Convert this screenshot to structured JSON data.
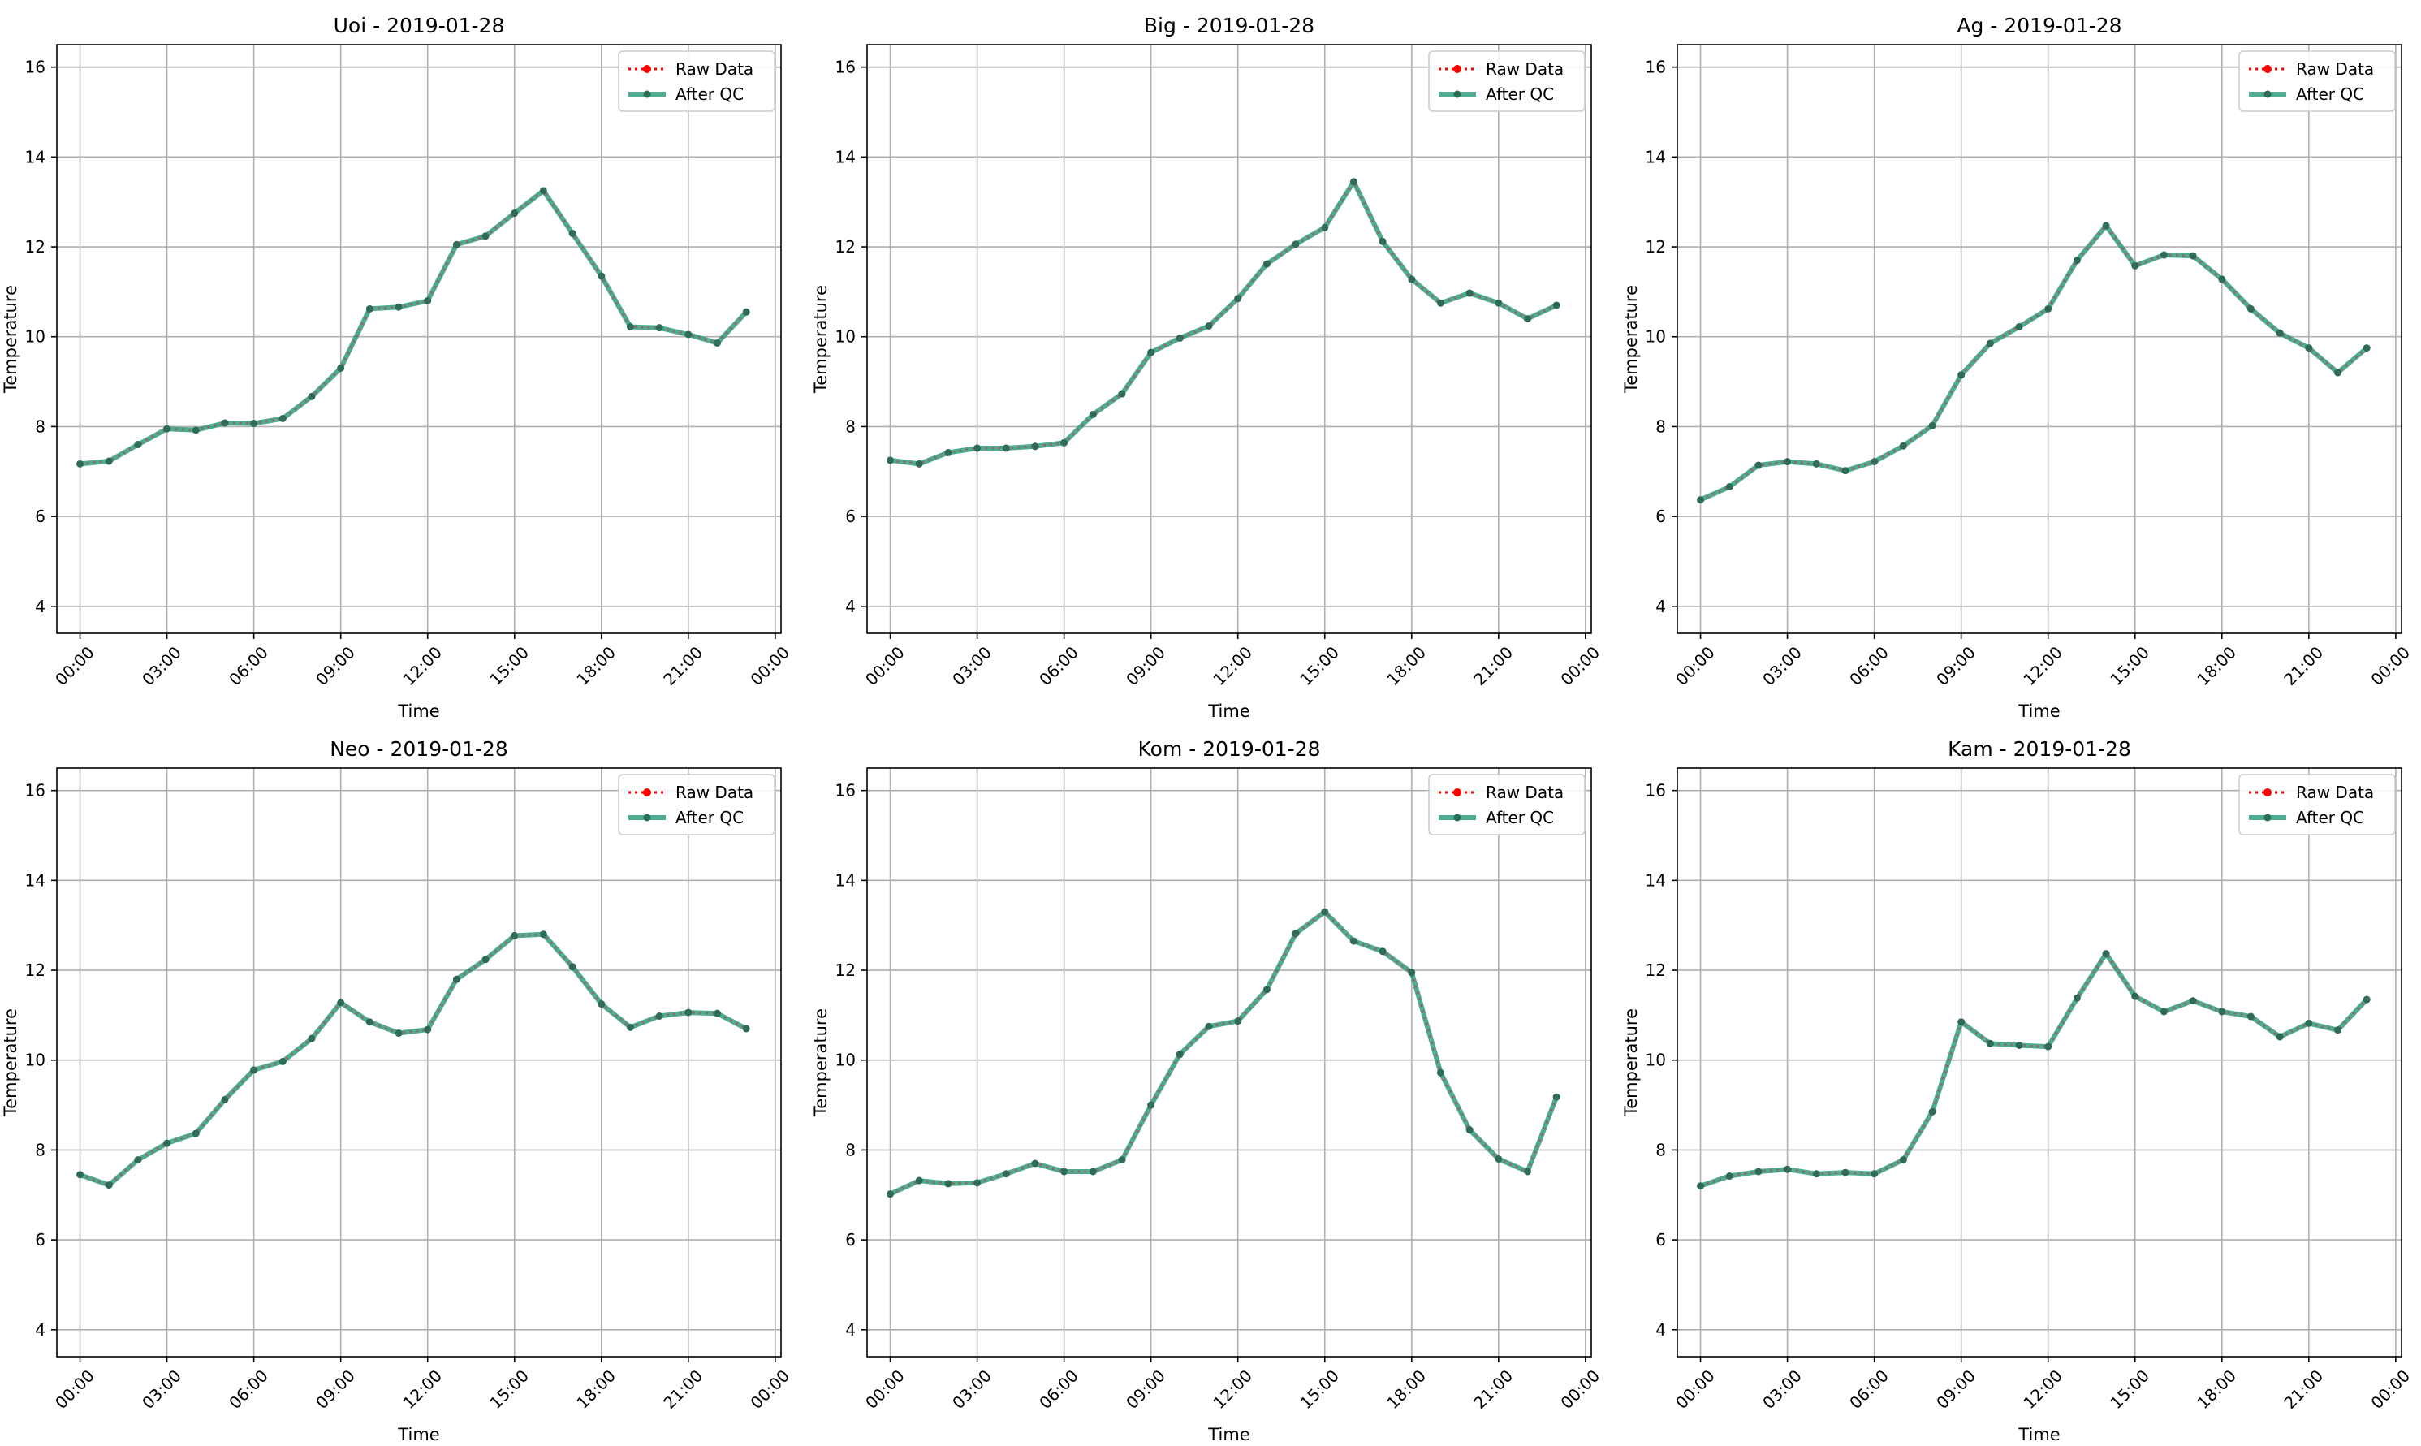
{
  "figure": {
    "colors": {
      "raw": "#ff0000",
      "qc": "#2e9e7e",
      "qc_marker": "#2f6b55",
      "grid": "#b0b0b0",
      "axis": "#000000"
    }
  },
  "chart_data": [
    {
      "type": "line",
      "title": "Uoi - 2019-01-28",
      "xlabel": "Time",
      "ylabel": "Temperature",
      "x": [
        "00:00",
        "01:00",
        "02:00",
        "03:00",
        "04:00",
        "05:00",
        "06:00",
        "07:00",
        "08:00",
        "09:00",
        "10:00",
        "11:00",
        "12:00",
        "13:00",
        "14:00",
        "15:00",
        "16:00",
        "17:00",
        "18:00",
        "19:00",
        "20:00",
        "21:00",
        "22:00",
        "23:00"
      ],
      "xticks": [
        "00:00",
        "03:00",
        "06:00",
        "09:00",
        "12:00",
        "15:00",
        "18:00",
        "21:00",
        "00:00"
      ],
      "xlim": [
        "2019-01-28 -00:48",
        "2019-01-29 00:12"
      ],
      "ylim": [
        3.4,
        16.5
      ],
      "yticks": [
        4,
        6,
        8,
        10,
        12,
        14,
        16
      ],
      "grid": true,
      "legend": "top-right",
      "series": [
        {
          "name": "Raw Data",
          "values": [
            7.17,
            7.23,
            7.6,
            7.95,
            7.92,
            8.08,
            8.07,
            8.18,
            8.67,
            9.3,
            10.62,
            10.66,
            10.8,
            12.05,
            12.24,
            12.75,
            13.25,
            12.3,
            11.35,
            10.22,
            10.2,
            10.05,
            9.86,
            10.55
          ]
        },
        {
          "name": "After QC",
          "values": [
            7.17,
            7.23,
            7.6,
            7.95,
            7.92,
            8.08,
            8.07,
            8.18,
            8.67,
            9.3,
            10.62,
            10.66,
            10.8,
            12.05,
            12.24,
            12.75,
            13.25,
            12.3,
            11.35,
            10.22,
            10.2,
            10.05,
            9.86,
            10.55
          ]
        }
      ]
    },
    {
      "type": "line",
      "title": "Big - 2019-01-28",
      "xlabel": "Time",
      "ylabel": "Temperature",
      "x": [
        "00:00",
        "01:00",
        "02:00",
        "03:00",
        "04:00",
        "05:00",
        "06:00",
        "07:00",
        "08:00",
        "09:00",
        "10:00",
        "11:00",
        "12:00",
        "13:00",
        "14:00",
        "15:00",
        "16:00",
        "17:00",
        "18:00",
        "19:00",
        "20:00",
        "21:00",
        "22:00",
        "23:00"
      ],
      "xticks": [
        "00:00",
        "03:00",
        "06:00",
        "09:00",
        "12:00",
        "15:00",
        "18:00",
        "21:00",
        "00:00"
      ],
      "xlim": [
        "2019-01-28 -00:48",
        "2019-01-29 00:12"
      ],
      "ylim": [
        3.4,
        16.5
      ],
      "yticks": [
        4,
        6,
        8,
        10,
        12,
        14,
        16
      ],
      "grid": true,
      "legend": "top-right",
      "series": [
        {
          "name": "Raw Data",
          "values": [
            7.25,
            7.17,
            7.42,
            7.52,
            7.52,
            7.56,
            7.64,
            8.27,
            8.73,
            9.65,
            9.97,
            10.24,
            10.85,
            11.62,
            12.06,
            12.43,
            13.45,
            12.12,
            11.28,
            10.75,
            10.97,
            10.75,
            10.4,
            10.7
          ]
        },
        {
          "name": "After QC",
          "values": [
            7.25,
            7.17,
            7.42,
            7.52,
            7.52,
            7.56,
            7.64,
            8.27,
            8.73,
            9.65,
            9.97,
            10.24,
            10.85,
            11.62,
            12.06,
            12.43,
            13.45,
            12.12,
            11.28,
            10.75,
            10.97,
            10.75,
            10.4,
            10.7
          ]
        }
      ]
    },
    {
      "type": "line",
      "title": "Ag - 2019-01-28",
      "xlabel": "Time",
      "ylabel": "Temperature",
      "x": [
        "00:00",
        "01:00",
        "02:00",
        "03:00",
        "04:00",
        "05:00",
        "06:00",
        "07:00",
        "08:00",
        "09:00",
        "10:00",
        "11:00",
        "12:00",
        "13:00",
        "14:00",
        "15:00",
        "16:00",
        "17:00",
        "18:00",
        "19:00",
        "20:00",
        "21:00",
        "22:00",
        "23:00"
      ],
      "xticks": [
        "00:00",
        "03:00",
        "06:00",
        "09:00",
        "12:00",
        "15:00",
        "18:00",
        "21:00",
        "00:00"
      ],
      "xlim": [
        "2019-01-28 -00:48",
        "2019-01-29 00:12"
      ],
      "ylim": [
        3.4,
        16.5
      ],
      "yticks": [
        4,
        6,
        8,
        10,
        12,
        14,
        16
      ],
      "grid": true,
      "legend": "top-right",
      "series": [
        {
          "name": "Raw Data",
          "values": [
            6.37,
            6.66,
            7.14,
            7.22,
            7.17,
            7.02,
            7.22,
            7.57,
            8.02,
            9.15,
            9.85,
            10.22,
            10.62,
            11.7,
            12.47,
            11.58,
            11.82,
            11.8,
            11.28,
            10.62,
            10.08,
            9.75,
            9.2,
            9.75
          ]
        },
        {
          "name": "After QC",
          "values": [
            6.37,
            6.66,
            7.14,
            7.22,
            7.17,
            7.02,
            7.22,
            7.57,
            8.02,
            9.15,
            9.85,
            10.22,
            10.62,
            11.7,
            12.47,
            11.58,
            11.82,
            11.8,
            11.28,
            10.62,
            10.08,
            9.75,
            9.2,
            9.75
          ]
        }
      ]
    },
    {
      "type": "line",
      "title": "Neo - 2019-01-28",
      "xlabel": "Time",
      "ylabel": "Temperature",
      "x": [
        "00:00",
        "01:00",
        "02:00",
        "03:00",
        "04:00",
        "05:00",
        "06:00",
        "07:00",
        "08:00",
        "09:00",
        "10:00",
        "11:00",
        "12:00",
        "13:00",
        "14:00",
        "15:00",
        "16:00",
        "17:00",
        "18:00",
        "19:00",
        "20:00",
        "21:00",
        "22:00",
        "23:00"
      ],
      "xticks": [
        "00:00",
        "03:00",
        "06:00",
        "09:00",
        "12:00",
        "15:00",
        "18:00",
        "21:00",
        "00:00"
      ],
      "xlim": [
        "2019-01-28 -00:48",
        "2019-01-29 00:12"
      ],
      "ylim": [
        3.4,
        16.5
      ],
      "yticks": [
        4,
        6,
        8,
        10,
        12,
        14,
        16
      ],
      "grid": true,
      "legend": "top-right",
      "series": [
        {
          "name": "Raw Data",
          "values": [
            7.45,
            7.22,
            7.78,
            8.15,
            8.37,
            9.12,
            9.78,
            9.97,
            10.48,
            11.28,
            10.85,
            10.6,
            10.68,
            11.8,
            12.24,
            12.77,
            12.8,
            12.08,
            11.25,
            10.73,
            10.98,
            11.06,
            11.04,
            10.7
          ]
        },
        {
          "name": "After QC",
          "values": [
            7.45,
            7.22,
            7.78,
            8.15,
            8.37,
            9.12,
            9.78,
            9.97,
            10.48,
            11.28,
            10.85,
            10.6,
            10.68,
            11.8,
            12.24,
            12.77,
            12.8,
            12.08,
            11.25,
            10.73,
            10.98,
            11.06,
            11.04,
            10.7
          ]
        }
      ]
    },
    {
      "type": "line",
      "title": "Kom - 2019-01-28",
      "xlabel": "Time",
      "ylabel": "Temperature",
      "x": [
        "00:00",
        "01:00",
        "02:00",
        "03:00",
        "04:00",
        "05:00",
        "06:00",
        "07:00",
        "08:00",
        "09:00",
        "10:00",
        "11:00",
        "12:00",
        "13:00",
        "14:00",
        "15:00",
        "16:00",
        "17:00",
        "18:00",
        "19:00",
        "20:00",
        "21:00",
        "22:00",
        "23:00"
      ],
      "xticks": [
        "00:00",
        "03:00",
        "06:00",
        "09:00",
        "12:00",
        "15:00",
        "18:00",
        "21:00",
        "00:00"
      ],
      "xlim": [
        "2019-01-28 -00:48",
        "2019-01-29 00:12"
      ],
      "ylim": [
        3.4,
        16.5
      ],
      "yticks": [
        4,
        6,
        8,
        10,
        12,
        14,
        16
      ],
      "grid": true,
      "legend": "top-right",
      "series": [
        {
          "name": "Raw Data",
          "values": [
            7.02,
            7.32,
            7.25,
            7.27,
            7.47,
            7.7,
            7.52,
            7.52,
            7.78,
            9.0,
            10.13,
            10.75,
            10.87,
            11.57,
            12.82,
            13.3,
            12.65,
            12.42,
            11.95,
            9.72,
            8.45,
            7.8,
            7.52,
            9.18
          ]
        },
        {
          "name": "After QC",
          "values": [
            7.02,
            7.32,
            7.25,
            7.27,
            7.47,
            7.7,
            7.52,
            7.52,
            7.78,
            9.0,
            10.13,
            10.75,
            10.87,
            11.57,
            12.82,
            13.3,
            12.65,
            12.42,
            11.95,
            9.72,
            8.45,
            7.8,
            7.52,
            9.18
          ]
        }
      ]
    },
    {
      "type": "line",
      "title": "Kam - 2019-01-28",
      "xlabel": "Time",
      "ylabel": "Temperature",
      "x": [
        "00:00",
        "01:00",
        "02:00",
        "03:00",
        "04:00",
        "05:00",
        "06:00",
        "07:00",
        "08:00",
        "09:00",
        "10:00",
        "11:00",
        "12:00",
        "13:00",
        "14:00",
        "15:00",
        "16:00",
        "17:00",
        "18:00",
        "19:00",
        "20:00",
        "21:00",
        "22:00",
        "23:00"
      ],
      "xticks": [
        "00:00",
        "03:00",
        "06:00",
        "09:00",
        "12:00",
        "15:00",
        "18:00",
        "21:00",
        "00:00"
      ],
      "xlim": [
        "2019-01-28 -00:48",
        "2019-01-29 00:12"
      ],
      "ylim": [
        3.4,
        16.5
      ],
      "yticks": [
        4,
        6,
        8,
        10,
        12,
        14,
        16
      ],
      "grid": true,
      "legend": "top-right",
      "series": [
        {
          "name": "Raw Data",
          "values": [
            7.2,
            7.42,
            7.52,
            7.57,
            7.47,
            7.5,
            7.47,
            7.78,
            8.85,
            10.85,
            10.37,
            10.33,
            10.3,
            11.38,
            12.37,
            11.42,
            11.08,
            11.32,
            11.08,
            10.97,
            10.52,
            10.82,
            10.67,
            11.35
          ]
        },
        {
          "name": "After QC",
          "values": [
            7.2,
            7.42,
            7.52,
            7.57,
            7.47,
            7.5,
            7.47,
            7.78,
            8.85,
            10.85,
            10.37,
            10.33,
            10.3,
            11.38,
            12.37,
            11.42,
            11.08,
            11.32,
            11.08,
            10.97,
            10.52,
            10.82,
            10.67,
            11.35
          ]
        }
      ]
    }
  ]
}
